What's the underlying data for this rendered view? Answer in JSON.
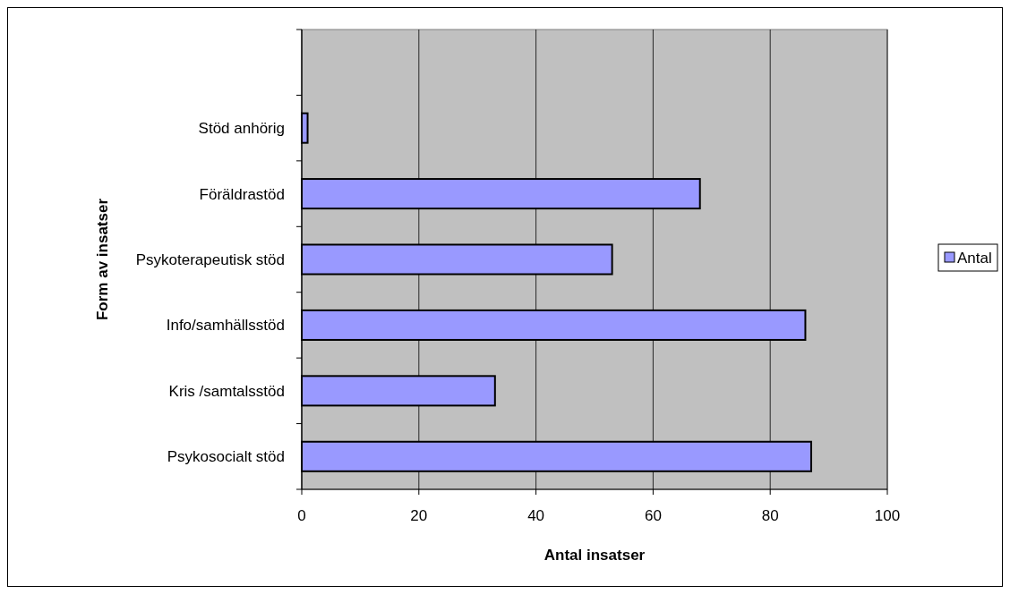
{
  "chart_data": {
    "type": "bar",
    "orientation": "horizontal",
    "xlabel": "Antal insatser",
    "ylabel": "Form av insatser",
    "categories": [
      null,
      "Stöd anhörig",
      "Föräldrastöd",
      "Psykoterapeutisk stöd",
      "Info/samhällsstöd",
      "Kris /samtalsstöd",
      "Psykosocialt stöd"
    ],
    "series": [
      {
        "name": "Antal",
        "color": "#9999ff",
        "values": [
          null,
          1,
          68,
          53,
          86,
          33,
          87
        ]
      }
    ],
    "xlim": [
      0,
      100
    ],
    "xticks": [
      0,
      20,
      40,
      60,
      80,
      100
    ],
    "grid": "x",
    "legend": "right"
  }
}
